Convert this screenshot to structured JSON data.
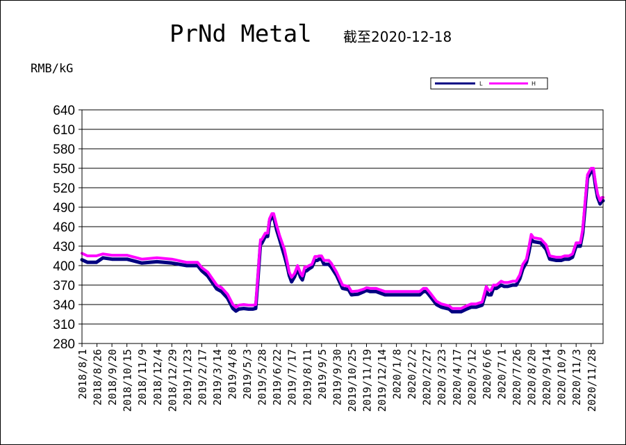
{
  "chart_data": {
    "type": "line",
    "title": "PrNd Metal",
    "subtitle": "截至2020-12-18",
    "unit_label": "RMB/kG",
    "ylim": [
      280,
      640
    ],
    "yticks": [
      640,
      610,
      580,
      550,
      520,
      490,
      460,
      430,
      400,
      370,
      340,
      310,
      280
    ],
    "grid": "horizontal",
    "legend_position": "top-right",
    "xtick_labels": [
      "2018/8/1",
      "2018/8/26",
      "2018/9/20",
      "2018/10/15",
      "2018/11/9",
      "2018/12/4",
      "2018/12/29",
      "2019/1/23",
      "2019/2/17",
      "2019/3/14",
      "2019/4/8",
      "2019/5/3",
      "2019/5/28",
      "2019/6/22",
      "2019/7/17",
      "2019/8/11",
      "2019/9/5",
      "2019/9/30",
      "2019/10/25",
      "2019/11/19",
      "2019/12/14",
      "2020/1/8",
      "2020/2/2",
      "2020/2/27",
      "2020/3/23",
      "2020/4/17",
      "2020/5/12",
      "2020/6/6",
      "2020/7/1",
      "2020/7/26",
      "2020/8/20",
      "2020/9/14",
      "2020/10/9",
      "2020/11/3",
      "2020/11/28"
    ],
    "x": [
      "2018-08-01",
      "2018-08-10",
      "2018-08-25",
      "2018-09-05",
      "2018-09-20",
      "2018-10-15",
      "2018-11-09",
      "2018-12-04",
      "2018-12-29",
      "2019-01-23",
      "2019-02-10",
      "2019-02-17",
      "2019-02-27",
      "2019-03-05",
      "2019-03-14",
      "2019-03-22",
      "2019-04-01",
      "2019-04-10",
      "2019-04-15",
      "2019-04-20",
      "2019-04-28",
      "2019-05-06",
      "2019-05-13",
      "2019-05-18",
      "2019-05-21",
      "2019-05-26",
      "2019-05-28",
      "2019-06-03",
      "2019-06-07",
      "2019-06-10",
      "2019-06-14",
      "2019-06-17",
      "2019-06-22",
      "2019-06-27",
      "2019-07-05",
      "2019-07-10",
      "2019-07-13",
      "2019-07-17",
      "2019-07-22",
      "2019-07-27",
      "2019-08-01",
      "2019-08-04",
      "2019-08-08",
      "2019-08-11",
      "2019-08-15",
      "2019-08-20",
      "2019-08-25",
      "2019-08-29",
      "2019-09-01",
      "2019-09-05",
      "2019-09-09",
      "2019-09-14",
      "2019-09-17",
      "2019-09-21",
      "2019-09-30",
      "2019-10-10",
      "2019-10-20",
      "2019-10-25",
      "2019-11-05",
      "2019-11-15",
      "2019-11-19",
      "2019-11-25",
      "2019-12-05",
      "2019-12-14",
      "2019-12-20",
      "2020-01-08",
      "2020-01-15",
      "2020-02-02",
      "2020-02-16",
      "2020-02-22",
      "2020-02-27",
      "2020-03-05",
      "2020-03-15",
      "2020-03-23",
      "2020-04-05",
      "2020-04-10",
      "2020-04-17",
      "2020-04-25",
      "2020-05-04",
      "2020-05-12",
      "2020-05-20",
      "2020-05-30",
      "2020-06-06",
      "2020-06-10",
      "2020-06-14",
      "2020-06-18",
      "2020-06-23",
      "2020-07-01",
      "2020-07-06",
      "2020-07-12",
      "2020-07-20",
      "2020-07-26",
      "2020-08-01",
      "2020-08-06",
      "2020-08-12",
      "2020-08-16",
      "2020-08-20",
      "2020-08-24",
      "2020-09-05",
      "2020-09-14",
      "2020-09-20",
      "2020-10-01",
      "2020-10-09",
      "2020-10-15",
      "2020-10-22",
      "2020-10-28",
      "2020-11-03",
      "2020-11-06",
      "2020-11-10",
      "2020-11-14",
      "2020-11-18",
      "2020-11-22",
      "2020-11-28",
      "2020-11-30",
      "2020-12-02",
      "2020-12-05",
      "2020-12-09",
      "2020-12-13",
      "2020-12-16",
      "2020-12-18"
    ],
    "series": [
      {
        "name": "L",
        "color": "#000080",
        "values": [
          409,
          405,
          405,
          412,
          410,
          410,
          404,
          406,
          404,
          400,
          400,
          392,
          384,
          376,
          364,
          360,
          350,
          334,
          330,
          333,
          334,
          333,
          333,
          334,
          370,
          434,
          434,
          445,
          445,
          468,
          475,
          475,
          455,
          440,
          415,
          398,
          385,
          375,
          383,
          395,
          382,
          378,
          392,
          392,
          395,
          398,
          408,
          408,
          410,
          410,
          402,
          402,
          402,
          398,
          385,
          365,
          363,
          355,
          356,
          360,
          362,
          360,
          360,
          357,
          355,
          355,
          355,
          355,
          355,
          360,
          360,
          352,
          340,
          336,
          333,
          329,
          329,
          329,
          333,
          336,
          336,
          339,
          360,
          355,
          355,
          365,
          365,
          370,
          368,
          368,
          370,
          370,
          380,
          395,
          405,
          420,
          440,
          437,
          435,
          425,
          410,
          408,
          408,
          410,
          410,
          413,
          430,
          430,
          430,
          450,
          490,
          535,
          545,
          545,
          545,
          525,
          505,
          495,
          500,
          500
        ]
      },
      {
        "name": "H",
        "color": "#ff00ff",
        "values": [
          419,
          415,
          415,
          418,
          416,
          416,
          410,
          412,
          410,
          405,
          405,
          397,
          390,
          382,
          370,
          366,
          356,
          340,
          336,
          339,
          340,
          339,
          339,
          340,
          375,
          440,
          440,
          450,
          450,
          472,
          480,
          480,
          462,
          446,
          425,
          404,
          390,
          382,
          388,
          400,
          388,
          384,
          398,
          398,
          400,
          402,
          414,
          414,
          415,
          415,
          408,
          408,
          408,
          404,
          390,
          370,
          368,
          360,
          361,
          364,
          366,
          365,
          365,
          362,
          360,
          360,
          360,
          360,
          360,
          365,
          365,
          357,
          345,
          341,
          338,
          334,
          334,
          334,
          338,
          341,
          341,
          344,
          368,
          362,
          362,
          370,
          370,
          376,
          374,
          374,
          376,
          376,
          386,
          402,
          410,
          428,
          448,
          443,
          441,
          432,
          415,
          413,
          413,
          415,
          415,
          418,
          435,
          435,
          435,
          456,
          498,
          540,
          550,
          550,
          550,
          530,
          510,
          500,
          505,
          505
        ]
      }
    ]
  }
}
